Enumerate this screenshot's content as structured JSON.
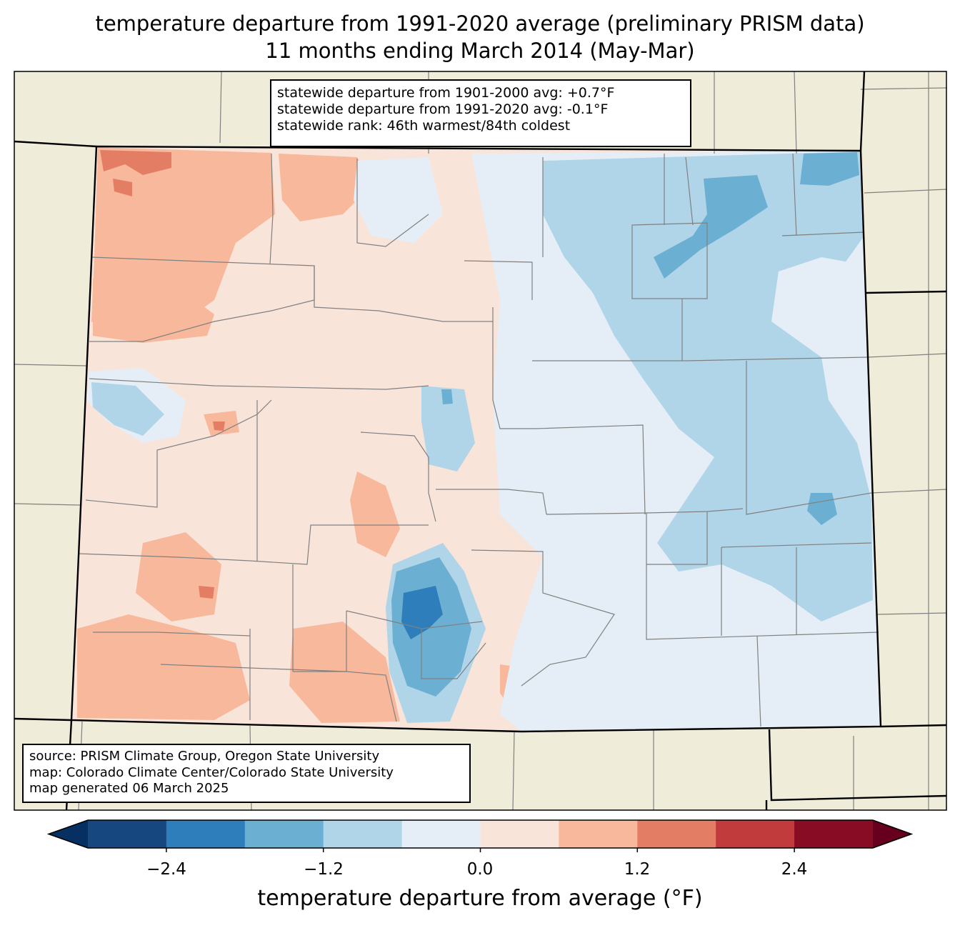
{
  "title": {
    "line1": "temperature departure from 1991-2020 average (preliminary PRISM data)",
    "line2": "11 months ending March 2014 (May-Mar)"
  },
  "stats": {
    "line1": "statewide departure from 1901-2000 avg: +0.7°F",
    "line2": "statewide departure from 1991-2020 avg: -0.1°F",
    "line3": "statewide rank: 46th warmest/84th coldest"
  },
  "source": {
    "line1": "source: PRISM Climate Group, Oregon State University",
    "line2": "map: Colorado Climate Center/Colorado State University",
    "line3": "map generated 06 March 2025"
  },
  "colorbar": {
    "label": "temperature departure from average (°F)",
    "ticks": [
      "−2.4",
      "−1.2",
      "0.0",
      "1.2",
      "2.4"
    ],
    "bins": [
      -3.0,
      -2.4,
      -1.8,
      -1.2,
      -0.6,
      0.0,
      0.6,
      1.2,
      1.8,
      2.4,
      3.0
    ],
    "colors": [
      "#053061",
      "#16487f",
      "#2f7ebc",
      "#6bafd3",
      "#b1d5e8",
      "#e5eef6",
      "#f9e4da",
      "#f7b89c",
      "#e37e64",
      "#c13a3c",
      "#870c24",
      "#67001f"
    ]
  },
  "palette": {
    "land": "#efedd9",
    "border": "#000000",
    "county": "#808080"
  }
}
